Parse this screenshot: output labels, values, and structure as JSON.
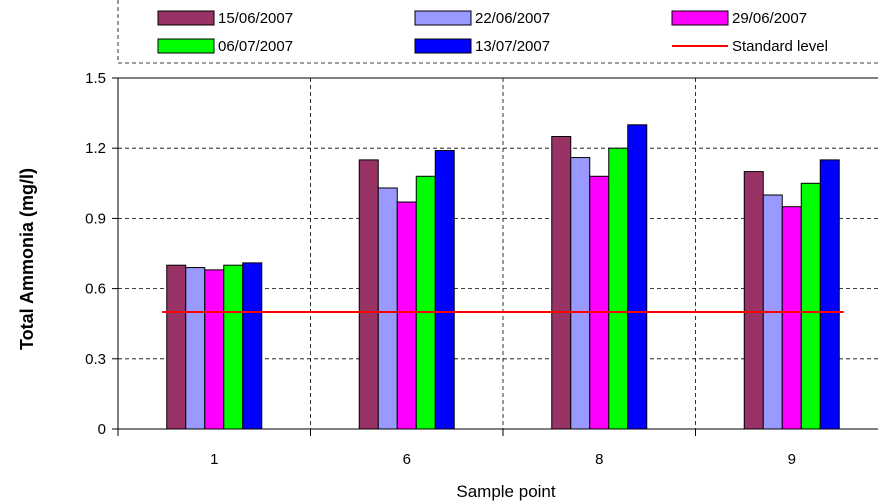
{
  "chart_data": {
    "type": "bar",
    "title": "",
    "xlabel": "Sample point",
    "ylabel": "Total Ammonia (mg/l)",
    "categories": [
      "1",
      "6",
      "8",
      "9"
    ],
    "ylim": [
      0,
      1.5
    ],
    "y_ticks": [
      "0",
      "0.3",
      "0.6",
      "0.9",
      "1.2",
      "1.5"
    ],
    "y_tick_values": [
      0,
      0.3,
      0.6,
      0.9,
      1.2,
      1.5
    ],
    "grid": true,
    "legend_position": "top",
    "series": [
      {
        "name": "15/06/2007",
        "color": "#993366",
        "values": [
          0.7,
          1.15,
          1.25,
          1.1
        ]
      },
      {
        "name": "22/06/2007",
        "color": "#9999ff",
        "values": [
          0.69,
          1.03,
          1.16,
          1.0
        ]
      },
      {
        "name": "29/06/2007",
        "color": "#ff00ff",
        "values": [
          0.68,
          0.97,
          1.08,
          0.95
        ]
      },
      {
        "name": "06/07/2007",
        "color": "#00ff00",
        "values": [
          0.7,
          1.08,
          1.2,
          1.05
        ]
      },
      {
        "name": "13/07/2007",
        "color": "#0000ff",
        "values": [
          0.71,
          1.19,
          1.3,
          1.15
        ]
      }
    ],
    "reference_line": {
      "name": "Standard level",
      "value": 0.5,
      "color": "#ff0000"
    }
  }
}
